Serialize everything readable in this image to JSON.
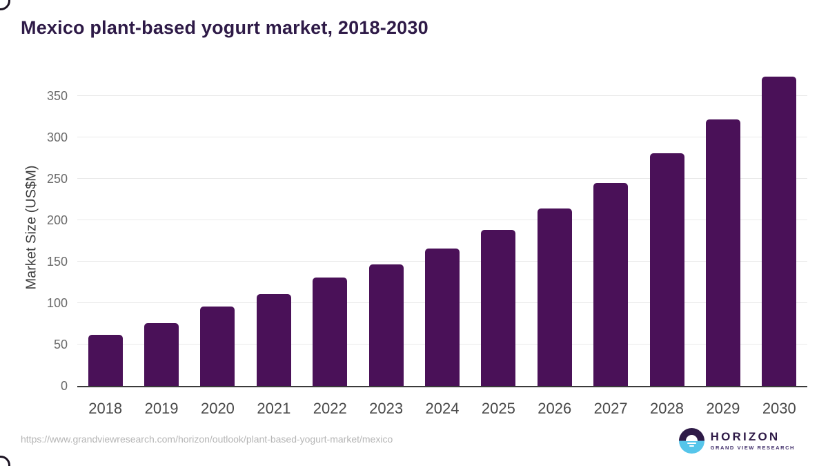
{
  "header": {
    "title": "Mexico plant-based yogurt market, 2018-2030"
  },
  "chart_data": {
    "type": "bar",
    "title": "Mexico plant-based yogurt market, 2018-2030",
    "xlabel": "",
    "ylabel": "Market Size (US$M)",
    "categories": [
      "2018",
      "2019",
      "2020",
      "2021",
      "2022",
      "2023",
      "2024",
      "2025",
      "2026",
      "2027",
      "2028",
      "2029",
      "2030"
    ],
    "values": [
      62,
      76,
      96,
      111,
      131,
      147,
      166,
      188,
      214,
      245,
      281,
      322,
      373
    ],
    "yticks": [
      0,
      50,
      100,
      150,
      200,
      250,
      300,
      350
    ],
    "ylim": [
      0,
      383
    ],
    "grid": true,
    "legend_position": "none",
    "bar_color": "#4a1158"
  },
  "footer": {
    "source_url": "https://www.grandviewresearch.com/horizon/outlook/plant-based-yogurt-market/mexico",
    "logo": {
      "name": "HORIZON",
      "subtitle": "GRAND VIEW RESEARCH"
    }
  },
  "colors": {
    "title_text": "#2e1a47",
    "bar_fill": "#4a1158",
    "gridline": "#e9e9e9",
    "axis_line": "#3a3a3a",
    "tick_text": "#6b6b6b",
    "url_text": "#b5b5b5",
    "logo_blue": "#56c5ea",
    "logo_purple": "#2e1a47"
  }
}
